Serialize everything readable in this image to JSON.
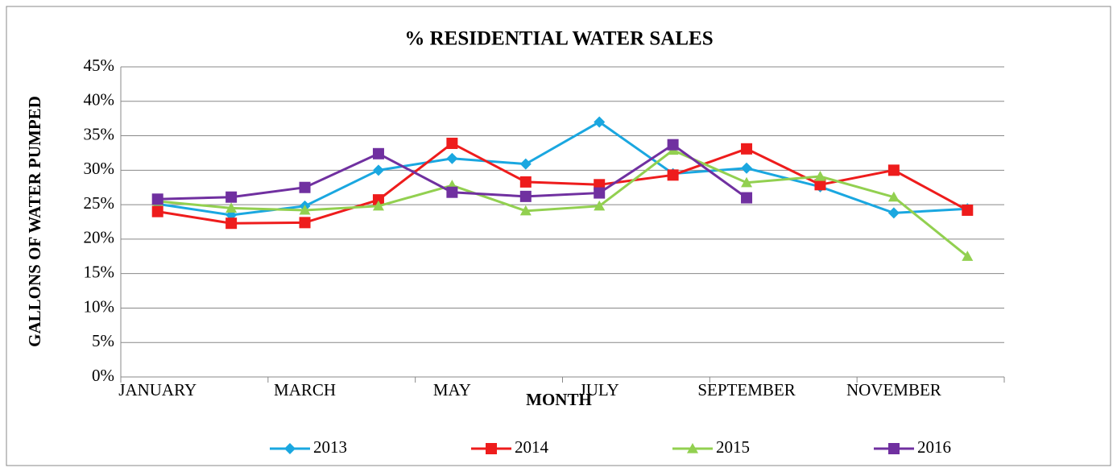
{
  "chart_data": {
    "type": "line",
    "title": "% RESIDENTIAL WATER SALES",
    "x_label": "MONTH",
    "y_label": "GALLONS OF WATER PUMPED",
    "categories": [
      "JANUARY",
      null,
      "MARCH",
      null,
      "MAY",
      null,
      "JULY",
      null,
      "SEPTEMBER",
      null,
      "NOVEMBER",
      null
    ],
    "series": [
      {
        "name": "2013",
        "color": "#1aa7e0",
        "marker": "diamond",
        "values": [
          25.1,
          23.5,
          24.8,
          30.0,
          31.7,
          30.9,
          37.0,
          29.5,
          30.3,
          27.6,
          23.8,
          24.4
        ]
      },
      {
        "name": "2014",
        "color": "#ee1c1c",
        "marker": "square",
        "values": [
          24.0,
          22.3,
          22.4,
          25.7,
          33.9,
          28.3,
          27.9,
          29.3,
          33.1,
          27.9,
          30.0,
          24.2
        ]
      },
      {
        "name": "2015",
        "color": "#92d050",
        "marker": "triangle",
        "values": [
          25.5,
          24.5,
          24.2,
          24.8,
          27.8,
          24.1,
          24.8,
          32.9,
          28.2,
          29.1,
          26.1,
          17.5
        ]
      },
      {
        "name": "2016",
        "color": "#7030a0",
        "marker": "square",
        "values": [
          25.8,
          26.1,
          27.5,
          32.4,
          26.8,
          26.2,
          26.7,
          33.7,
          26.0,
          null,
          null,
          null
        ]
      }
    ],
    "ylim": [
      0,
      45
    ],
    "yticks": [
      {
        "value": 0,
        "label": "0%"
      },
      {
        "value": 5,
        "label": "5%"
      },
      {
        "value": 10,
        "label": "10%"
      },
      {
        "value": 15,
        "label": "15%"
      },
      {
        "value": 20,
        "label": "20%"
      },
      {
        "value": 25,
        "label": "25%"
      },
      {
        "value": 30,
        "label": "30%"
      },
      {
        "value": 35,
        "label": "35%"
      },
      {
        "value": 40,
        "label": "40%"
      },
      {
        "value": 45,
        "label": "45%"
      }
    ],
    "grid": true,
    "legend": "bottom"
  }
}
